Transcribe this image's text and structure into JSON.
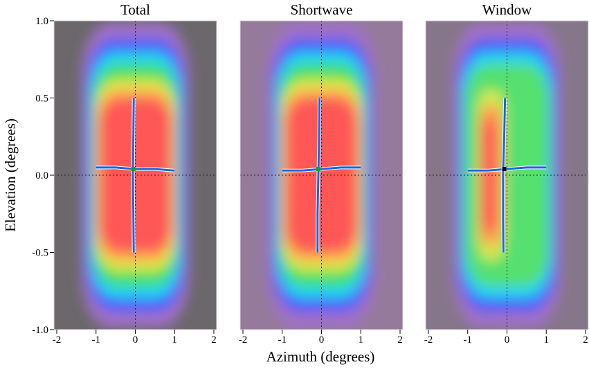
{
  "chart_data": {
    "type": "heatmap",
    "xlabel": "Azimuth (degrees)",
    "ylabel": "Elevation (degrees)",
    "xlim": [
      -2,
      2
    ],
    "ylim": [
      -1,
      1
    ],
    "xticks": [
      -2,
      -1,
      0,
      1,
      2
    ],
    "yticks": [
      {
        "value": -1,
        "label": "-1.0"
      },
      {
        "value": -0.5,
        "label": "-0.5"
      },
      {
        "value": 0,
        "label": "0.0"
      },
      {
        "value": 0.5,
        "label": "0.5"
      },
      {
        "value": 1,
        "label": "1.0"
      }
    ],
    "scan_color": "#1a66e0",
    "panels": [
      {
        "title": "Total",
        "background": "#6b676b",
        "azimuth_scan": {
          "x": [
            -1,
            -0.5,
            0,
            0.5,
            1
          ],
          "y": [
            0.05,
            0.05,
            0.04,
            0.04,
            0.03
          ]
        },
        "elevation_scan": {
          "x": [
            -0.04,
            -0.05,
            -0.06,
            -0.05,
            -0.04
          ],
          "y": [
            0.5,
            0.25,
            0,
            -0.25,
            -0.5
          ]
        },
        "center": [
          -0.05,
          0.04
        ],
        "center_color": "#1f9a2a"
      },
      {
        "title": "Shortwave",
        "background": "#957a9c",
        "azimuth_scan": {
          "x": [
            -1,
            -0.5,
            0,
            0.5,
            1
          ],
          "y": [
            0.03,
            0.03,
            0.04,
            0.05,
            0.05
          ]
        },
        "elevation_scan": {
          "x": [
            -0.05,
            -0.06,
            -0.08,
            -0.1,
            -0.1
          ],
          "y": [
            0.5,
            0.25,
            0,
            -0.25,
            -0.5
          ]
        },
        "center": [
          -0.08,
          0.04
        ],
        "center_color": "#1f9a2a"
      },
      {
        "title": "Window",
        "background": "#86768a",
        "azimuth_scan": {
          "x": [
            -1,
            -0.5,
            0,
            0.5,
            1
          ],
          "y": [
            0.03,
            0.03,
            0.04,
            0.05,
            0.05
          ]
        },
        "elevation_scan": {
          "x": [
            -0.05,
            -0.07,
            -0.1,
            -0.1,
            -0.09
          ],
          "y": [
            0.5,
            0.25,
            0,
            -0.25,
            -0.5
          ]
        },
        "center": [
          -0.07,
          0.04
        ],
        "center_color": "#000000"
      }
    ]
  }
}
